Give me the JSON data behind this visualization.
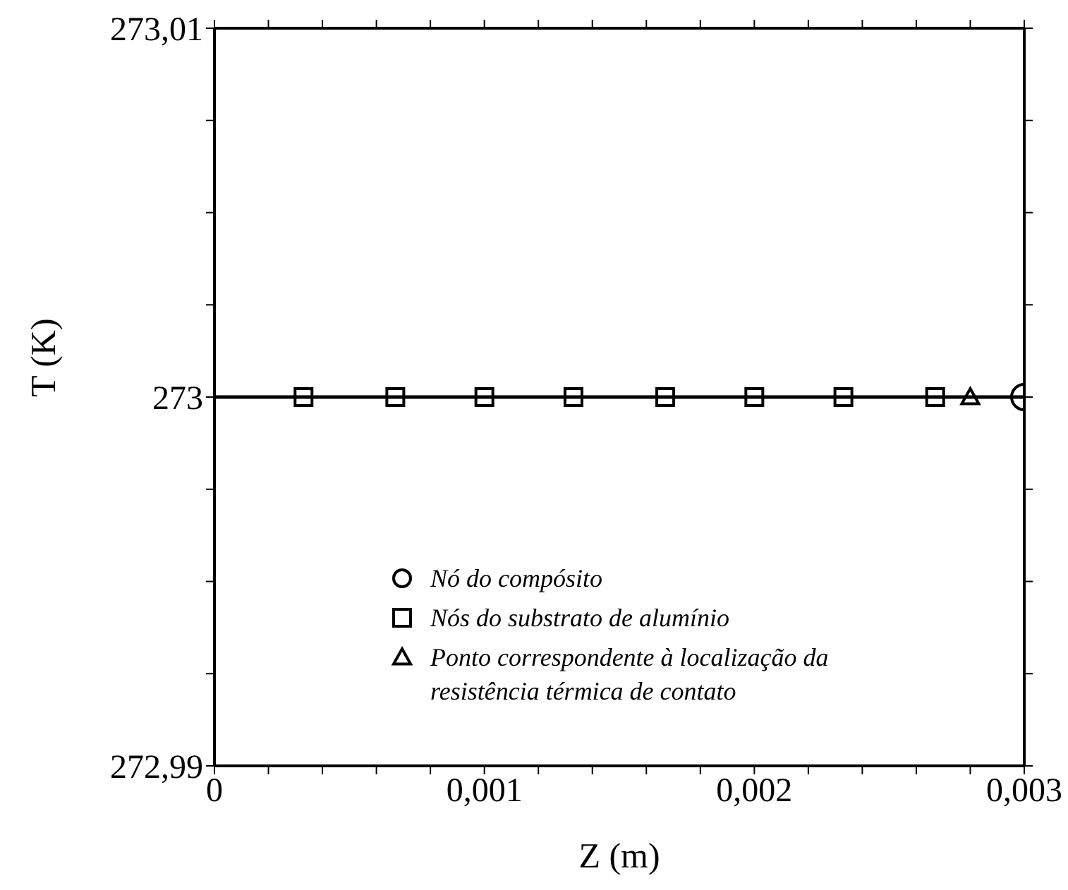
{
  "chart_data": {
    "type": "scatter",
    "xlabel": "Z (m)",
    "ylabel": "T (K)",
    "xlim": [
      0,
      0.003
    ],
    "ylim": [
      272.99,
      273.01
    ],
    "xticks": [
      0,
      {
        "value": 0.0002,
        "label": null
      },
      {
        "value": 0.0004,
        "label": null
      },
      {
        "value": 0.0006,
        "label": null
      },
      {
        "value": 0.0008,
        "label": null
      },
      {
        "value": 0.001,
        "label": "0,001"
      },
      {
        "value": 0.0012,
        "label": null
      },
      {
        "value": 0.0014,
        "label": null
      },
      {
        "value": 0.0016,
        "label": null
      },
      {
        "value": 0.0018,
        "label": null
      },
      {
        "value": 0.002,
        "label": "0,002"
      },
      {
        "value": 0.0022,
        "label": null
      },
      {
        "value": 0.0024,
        "label": null
      },
      {
        "value": 0.0026,
        "label": null
      },
      {
        "value": 0.0028,
        "label": null
      },
      {
        "value": 0.003,
        "label": "0,003"
      }
    ],
    "yticks": [
      {
        "value": 272.99,
        "label": "272,99"
      },
      {
        "value": 272.9925,
        "label": null
      },
      {
        "value": 272.995,
        "label": null
      },
      {
        "value": 272.9975,
        "label": null
      },
      273,
      {
        "value": 273.0025,
        "label": null
      },
      {
        "value": 273.005,
        "label": null
      },
      {
        "value": 273.0075,
        "label": null
      },
      {
        "value": 273.01,
        "label": "273,01"
      }
    ],
    "legend": "bottom right",
    "series": [
      {
        "type": "line",
        "color": "#000000",
        "marker": "none",
        "line_style": "solid",
        "x": [
          0,
          0.003
        ],
        "values": [
          273,
          273
        ]
      },
      {
        "name": "Nó do compósito",
        "color": "#000000",
        "marker": "circle",
        "x": [
          0.003
        ],
        "values": [
          273
        ]
      },
      {
        "name": "Nós do substrato de alumínio",
        "color": "#000000",
        "marker": "square",
        "x": [
          0.00033,
          0.00067,
          0.001,
          0.00133,
          0.00167,
          0.002,
          0.00233,
          0.00267
        ],
        "values": [
          273,
          273,
          273,
          273,
          273,
          273,
          273,
          273
        ]
      },
      {
        "name": "Ponto correspondente à localização da resistência térmica de contato",
        "color": "#000000",
        "marker": "triangle",
        "x": [
          0.0028
        ],
        "values": [
          273
        ]
      }
    ]
  }
}
